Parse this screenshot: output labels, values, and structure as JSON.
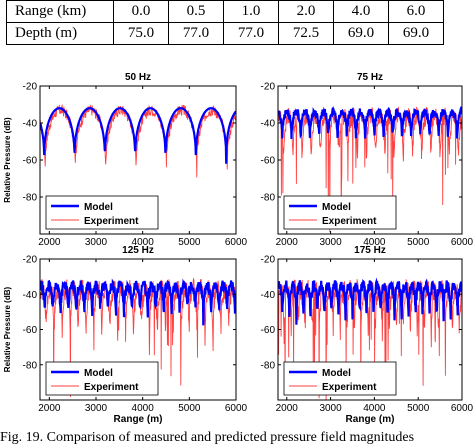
{
  "table": {
    "rows": [
      {
        "label": "Range (km)",
        "values": [
          "0.0",
          "0.5",
          "1.0",
          "2.0",
          "4.0",
          "6.0"
        ]
      },
      {
        "label": "Depth (m)",
        "values": [
          "75.0",
          "77.0",
          "77.0",
          "72.5",
          "69.0",
          "69.0"
        ]
      }
    ]
  },
  "caption": "Fig. 19.  Comparison of measured and predicted pressure field magnitudes",
  "chart_data": [
    {
      "type": "line",
      "title": "50 Hz",
      "xlabel": "",
      "ylabel": "Relative Pressure (dB)",
      "xlim": [
        1800,
        6000
      ],
      "ylim": [
        -100,
        -20
      ],
      "xticks": [
        2000,
        3000,
        4000,
        5000,
        6000
      ],
      "yticks": [
        -20,
        -40,
        -60,
        -80
      ],
      "legend_position": "lower-left",
      "series": [
        {
          "name": "Model",
          "color": "#0000ff",
          "model": {
            "base": -32,
            "depth": 30,
            "period": 650,
            "phase": 1890,
            "offset": 0,
            "jitter": 0
          }
        },
        {
          "name": "Experiment",
          "color": "#ff4040",
          "model": {
            "base": -33,
            "depth": 35,
            "period": 650,
            "phase": 1890,
            "offset": 20,
            "jitter": 3
          }
        }
      ]
    },
    {
      "type": "line",
      "title": "75 Hz",
      "xlabel": "",
      "ylabel": "",
      "xlim": [
        1800,
        6000
      ],
      "ylim": [
        -100,
        -20
      ],
      "xticks": [
        2000,
        3000,
        4000,
        5000,
        6000
      ],
      "yticks": [
        -20,
        -40,
        -60,
        -80
      ],
      "legend_position": "lower-left",
      "series": [
        {
          "name": "Model",
          "color": "#0000ff",
          "model": {
            "base": -34,
            "depth": 18,
            "period": 210,
            "phase": 1900,
            "offset": 0,
            "jitter": 2
          }
        },
        {
          "name": "Experiment",
          "color": "#ff4040",
          "model": {
            "base": -36,
            "depth": 30,
            "period": 210,
            "phase": 1900,
            "offset": 30,
            "jitter": 5
          }
        }
      ]
    },
    {
      "type": "line",
      "title": "125 Hz",
      "xlabel": "Range (m)",
      "ylabel": "Relative Pressure (dB)",
      "xlim": [
        1800,
        6000
      ],
      "ylim": [
        -100,
        -20
      ],
      "xticks": [
        2000,
        3000,
        4000,
        5000,
        6000
      ],
      "yticks": [
        -20,
        -40,
        -60,
        -80
      ],
      "legend_position": "lower-left",
      "series": [
        {
          "name": "Model",
          "color": "#0000ff",
          "model": {
            "base": -35,
            "depth": 20,
            "period": 170,
            "phase": 1900,
            "offset": 0,
            "jitter": 3
          }
        },
        {
          "name": "Experiment",
          "color": "#ff4040",
          "model": {
            "base": -37,
            "depth": 32,
            "period": 170,
            "phase": 1900,
            "offset": 35,
            "jitter": 6
          }
        }
      ]
    },
    {
      "type": "line",
      "title": "175 Hz",
      "xlabel": "Range (m)",
      "ylabel": "",
      "xlim": [
        1800,
        6000
      ],
      "ylim": [
        -100,
        -20
      ],
      "xticks": [
        2000,
        3000,
        4000,
        5000,
        6000
      ],
      "yticks": [
        -20,
        -40,
        -60,
        -80
      ],
      "legend_position": "lower-left",
      "series": [
        {
          "name": "Model",
          "color": "#0000ff",
          "model": {
            "base": -35,
            "depth": 22,
            "period": 160,
            "phase": 1900,
            "offset": 0,
            "jitter": 3
          }
        },
        {
          "name": "Experiment",
          "color": "#ff4040",
          "model": {
            "base": -37,
            "depth": 32,
            "period": 160,
            "phase": 1900,
            "offset": 40,
            "jitter": 6
          }
        }
      ]
    }
  ]
}
